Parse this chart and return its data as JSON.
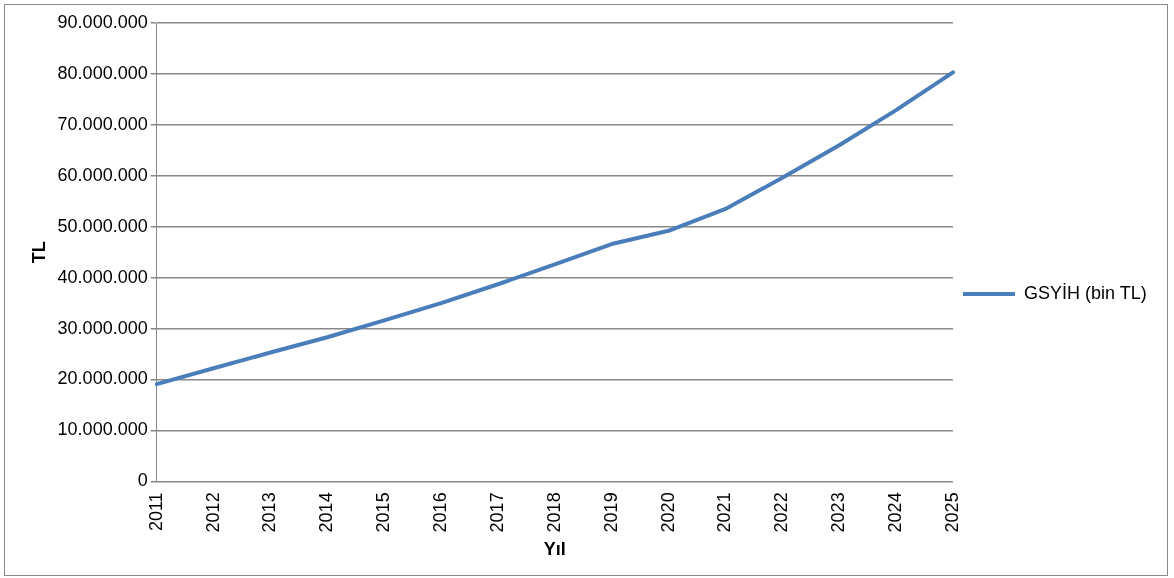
{
  "chart_data": {
    "type": "line",
    "xlabel": "Yıl",
    "ylabel": "TL",
    "categories": [
      "2011",
      "2012",
      "2013",
      "2014",
      "2015",
      "2016",
      "2017",
      "2018",
      "2019",
      "2020",
      "2021",
      "2022",
      "2023",
      "2024",
      "2025"
    ],
    "series": [
      {
        "name": "GSYİH (bin TL)",
        "color": "#4a7ebb",
        "values": [
          19100000,
          22200000,
          25300000,
          28300000,
          31600000,
          35000000,
          38700000,
          42600000,
          46600000,
          49200000,
          53500000,
          59600000,
          66000000,
          72900000,
          80300000
        ]
      }
    ],
    "ylim": [
      0,
      90000000
    ],
    "yticks": [
      {
        "value": 0,
        "label": "0"
      },
      {
        "value": 10000000,
        "label": "10.000.000"
      },
      {
        "value": 20000000,
        "label": "20.000.000"
      },
      {
        "value": 30000000,
        "label": "30.000.000"
      },
      {
        "value": 40000000,
        "label": "40.000.000"
      },
      {
        "value": 50000000,
        "label": "50.000.000"
      },
      {
        "value": 60000000,
        "label": "60.000.000"
      },
      {
        "value": 70000000,
        "label": "70.000.000"
      },
      {
        "value": 80000000,
        "label": "80.000.000"
      },
      {
        "value": 90000000,
        "label": "90.000.000"
      }
    ],
    "grid": "y",
    "legend": "right",
    "marker": "none",
    "line_style": "solid"
  }
}
